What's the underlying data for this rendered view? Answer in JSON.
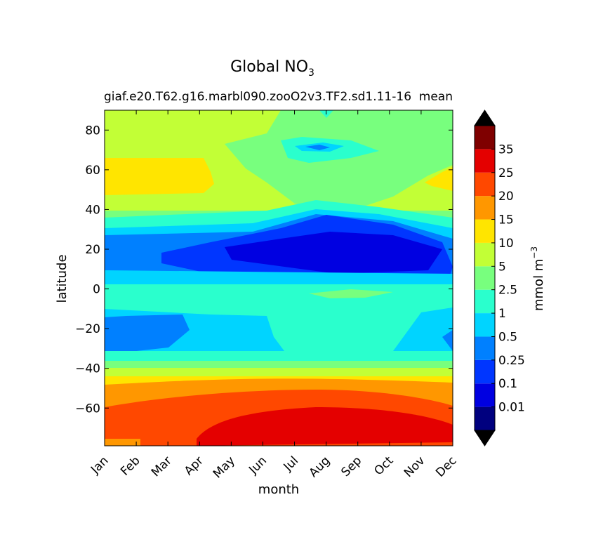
{
  "chart_data": {
    "type": "heatmap",
    "title_main": "Global NO",
    "title_sub": "3",
    "subtitle_left": "giaf.e20.T62.g16.marbl090.zooO2v3.TF2.sd1.11-16",
    "subtitle_right": "mean",
    "xlabel": "month",
    "ylabel": "latitude",
    "x_ticks": [
      "Jan",
      "Feb",
      "Mar",
      "Apr",
      "May",
      "Jun",
      "Jul",
      "Aug",
      "Sep",
      "Oct",
      "Nov",
      "Dec"
    ],
    "y_ticks": [
      80,
      60,
      40,
      20,
      0,
      -20,
      -40,
      -60
    ],
    "ylim": [
      -79,
      90
    ],
    "xlim": [
      0,
      11
    ],
    "colorbar": {
      "label": "mmol m",
      "label_exp": "−3",
      "levels": [
        0,
        0.01,
        0.1,
        0.25,
        0.5,
        1,
        2.5,
        5,
        10,
        15,
        20,
        25,
        35
      ],
      "tick_labels": [
        "0.01",
        "0.1",
        "0.25",
        "0.5",
        "1",
        "2.5",
        "5",
        "10",
        "15",
        "20",
        "25",
        "35"
      ],
      "colors": [
        "#00007f",
        "#0000e1",
        "#0036ff",
        "#0080ff",
        "#00d4ff",
        "#2affcd",
        "#78ff7e",
        "#c2ff36",
        "#ffe500",
        "#ff9700",
        "#ff4800",
        "#e40000",
        "#7f0000"
      ],
      "under_color": "#000000",
      "over_color": "#000000"
    },
    "lat_profile_annual": [
      {
        "lat": 90,
        "value": 2.5
      },
      {
        "lat": 75,
        "value": 5
      },
      {
        "lat": 60,
        "value": 10
      },
      {
        "lat": 45,
        "value": 5
      },
      {
        "lat": 38,
        "value": 2.5
      },
      {
        "lat": 30,
        "value": 0.5
      },
      {
        "lat": 15,
        "value": 0.1
      },
      {
        "lat": 5,
        "value": 0.5
      },
      {
        "lat": 0,
        "value": 1
      },
      {
        "lat": -10,
        "value": 1
      },
      {
        "lat": -22,
        "value": 0.25
      },
      {
        "lat": -35,
        "value": 1
      },
      {
        "lat": -45,
        "value": 10
      },
      {
        "lat": -55,
        "value": 15
      },
      {
        "lat": -65,
        "value": 20
      },
      {
        "lat": -75,
        "value": 25
      }
    ]
  }
}
